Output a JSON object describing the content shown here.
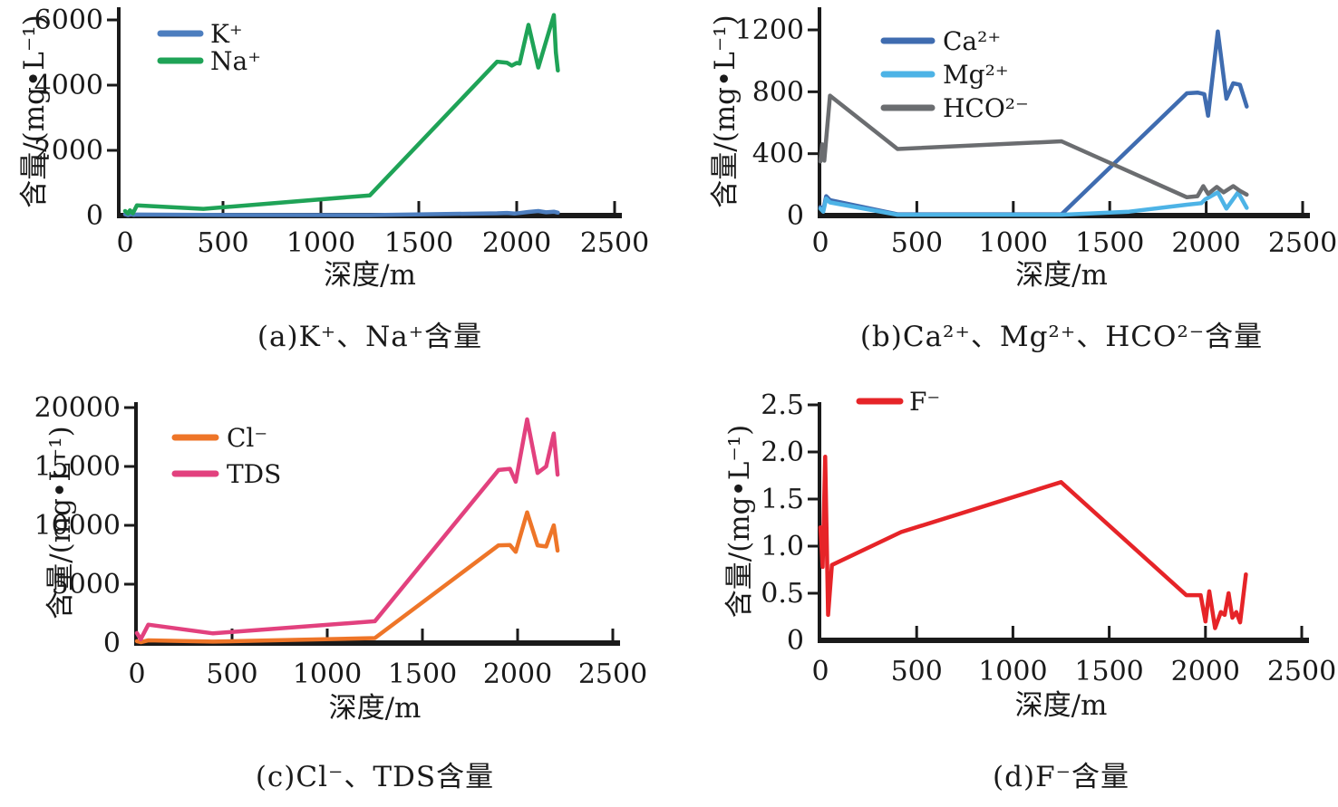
{
  "figure_title": "",
  "colors": {
    "axis": "#1a1a1a",
    "text": "#1a1a1a",
    "background": "#ffffff"
  },
  "chart_data": [
    {
      "id": "a",
      "type": "line",
      "caption": "(a)K⁺、Na⁺含量",
      "xlabel": "深度/m",
      "ylabel": "含量/(mg•L⁻¹)",
      "xlim": [
        0,
        2500
      ],
      "ylim": [
        0,
        6000
      ],
      "xticks": [
        0,
        500,
        1000,
        1500,
        2000,
        2500
      ],
      "xtick_labels": [
        "0",
        "500",
        "1000",
        "1500",
        "2000",
        "2500"
      ],
      "yticks": [
        0,
        2000,
        4000,
        6000
      ],
      "ytick_labels": [
        "0",
        "2000",
        "4000",
        "6000"
      ],
      "grid": false,
      "legend_position": "upper-left-inside",
      "series": [
        {
          "name": "K⁺",
          "color": "#4d7ebf",
          "points": [
            [
              0,
              40
            ],
            [
              15,
              15
            ],
            [
              30,
              35
            ],
            [
              45,
              20
            ],
            [
              60,
              30
            ],
            [
              400,
              20
            ],
            [
              1250,
              15
            ],
            [
              1900,
              70
            ],
            [
              1950,
              80
            ],
            [
              1990,
              60
            ],
            [
              2010,
              75
            ],
            [
              2060,
              110
            ],
            [
              2110,
              140
            ],
            [
              2150,
              100
            ],
            [
              2190,
              120
            ],
            [
              2210,
              90
            ]
          ]
        },
        {
          "name": "Na⁺",
          "color": "#1fa357",
          "points": [
            [
              0,
              140
            ],
            [
              15,
              60
            ],
            [
              25,
              160
            ],
            [
              40,
              70
            ],
            [
              60,
              310
            ],
            [
              400,
              205
            ],
            [
              1250,
              620
            ],
            [
              1900,
              4720
            ],
            [
              1950,
              4690
            ],
            [
              1975,
              4600
            ],
            [
              2000,
              4680
            ],
            [
              2015,
              4660
            ],
            [
              2060,
              5850
            ],
            [
              2110,
              4540
            ],
            [
              2190,
              6150
            ],
            [
              2200,
              5000
            ],
            [
              2210,
              4450
            ]
          ]
        }
      ]
    },
    {
      "id": "b",
      "type": "line",
      "caption": "(b)Ca²⁺、Mg²⁺、HCO²⁻含量",
      "xlabel": "深度/m",
      "ylabel": "含量/(mg•L⁻¹)",
      "xlim": [
        0,
        2500
      ],
      "ylim": [
        0,
        1200
      ],
      "xticks": [
        0,
        500,
        1000,
        1500,
        2000,
        2500
      ],
      "xtick_labels": [
        "0",
        "500",
        "1000",
        "1500",
        "2000",
        "2500"
      ],
      "yticks": [
        0,
        400,
        800,
        1200
      ],
      "ytick_labels": [
        "0",
        "400",
        "800",
        "1200"
      ],
      "grid": false,
      "legend_position": "upper-left-inside",
      "series": [
        {
          "name": "Ca²⁺",
          "color": "#3f6cb0",
          "points": [
            [
              0,
              55
            ],
            [
              15,
              35
            ],
            [
              30,
              125
            ],
            [
              50,
              100
            ],
            [
              400,
              8
            ],
            [
              1250,
              8
            ],
            [
              1900,
              790
            ],
            [
              1955,
              795
            ],
            [
              1990,
              785
            ],
            [
              2010,
              645
            ],
            [
              2060,
              1190
            ],
            [
              2105,
              755
            ],
            [
              2140,
              855
            ],
            [
              2175,
              845
            ],
            [
              2210,
              705
            ]
          ]
        },
        {
          "name": "Mg²⁺",
          "color": "#4db3e6",
          "points": [
            [
              0,
              45
            ],
            [
              15,
              25
            ],
            [
              30,
              110
            ],
            [
              50,
              85
            ],
            [
              400,
              5
            ],
            [
              1250,
              5
            ],
            [
              1600,
              25
            ],
            [
              1900,
              70
            ],
            [
              1975,
              80
            ],
            [
              1995,
              105
            ],
            [
              2060,
              150
            ],
            [
              2105,
              45
            ],
            [
              2165,
              150
            ],
            [
              2210,
              50
            ]
          ]
        },
        {
          "name": "HCO²⁻",
          "color": "#6b6d70",
          "points": [
            [
              0,
              350
            ],
            [
              10,
              460
            ],
            [
              20,
              355
            ],
            [
              50,
              775
            ],
            [
              400,
              430
            ],
            [
              1250,
              480
            ],
            [
              1900,
              118
            ],
            [
              1955,
              125
            ],
            [
              1985,
              190
            ],
            [
              2010,
              140
            ],
            [
              2055,
              185
            ],
            [
              2090,
              150
            ],
            [
              2140,
              190
            ],
            [
              2175,
              160
            ],
            [
              2210,
              135
            ]
          ]
        }
      ]
    },
    {
      "id": "c",
      "type": "line",
      "caption": "(c)Cl⁻、TDS含量",
      "xlabel": "深度/m",
      "ylabel": "含量/(mg•L⁻¹)",
      "xlim": [
        0,
        2500
      ],
      "ylim": [
        0,
        20000
      ],
      "xticks": [
        0,
        500,
        1000,
        1500,
        2000,
        2500
      ],
      "xtick_labels": [
        "0",
        "500",
        "1000",
        "1500",
        "2000",
        "2500"
      ],
      "yticks": [
        0,
        5000,
        10000,
        15000,
        20000
      ],
      "ytick_labels": [
        "0",
        "5000",
        "10000",
        "15000",
        "20000"
      ],
      "grid": false,
      "legend_position": "upper-left-inside",
      "series": [
        {
          "name": "Cl⁻",
          "color": "#ee7528",
          "points": [
            [
              0,
              160
            ],
            [
              20,
              80
            ],
            [
              60,
              230
            ],
            [
              400,
              120
            ],
            [
              1250,
              420
            ],
            [
              1900,
              8300
            ],
            [
              1960,
              8320
            ],
            [
              1990,
              7750
            ],
            [
              2050,
              11100
            ],
            [
              2105,
              8300
            ],
            [
              2150,
              8200
            ],
            [
              2190,
              10000
            ],
            [
              2210,
              7850
            ]
          ]
        },
        {
          "name": "TDS",
          "color": "#e2417e",
          "points": [
            [
              0,
              850
            ],
            [
              20,
              320
            ],
            [
              60,
              1560
            ],
            [
              400,
              820
            ],
            [
              1250,
              1850
            ],
            [
              1900,
              14700
            ],
            [
              1960,
              14800
            ],
            [
              1990,
              13700
            ],
            [
              2050,
              19000
            ],
            [
              2105,
              14450
            ],
            [
              2150,
              15000
            ],
            [
              2190,
              17800
            ],
            [
              2210,
              14300
            ]
          ]
        }
      ]
    },
    {
      "id": "d",
      "type": "line",
      "caption": "(d)F⁻含量",
      "xlabel": "深度/m",
      "ylabel": "含量/(mg•L⁻¹)",
      "xlim": [
        0,
        2500
      ],
      "ylim": [
        0,
        2.5
      ],
      "xticks": [
        0,
        500,
        1000,
        1500,
        2000,
        2500
      ],
      "xtick_labels": [
        "0",
        "500",
        "1000",
        "1500",
        "2000",
        "2500"
      ],
      "yticks": [
        0,
        0.5,
        1.0,
        1.5,
        2.0,
        2.5
      ],
      "ytick_labels": [
        "0",
        "0.5",
        "1.0",
        "1.5",
        "2.0",
        "2.5"
      ],
      "grid": false,
      "legend_position": "upper-left-inside",
      "series": [
        {
          "name": "F⁻",
          "color": "#e62428",
          "points": [
            [
              0,
              1.2
            ],
            [
              12,
              0.78
            ],
            [
              25,
              1.95
            ],
            [
              40,
              0.27
            ],
            [
              60,
              0.8
            ],
            [
              420,
              1.15
            ],
            [
              1250,
              1.68
            ],
            [
              1900,
              0.48
            ],
            [
              1975,
              0.48
            ],
            [
              2000,
              0.2
            ],
            [
              2020,
              0.52
            ],
            [
              2050,
              0.13
            ],
            [
              2080,
              0.3
            ],
            [
              2100,
              0.27
            ],
            [
              2120,
              0.5
            ],
            [
              2140,
              0.24
            ],
            [
              2160,
              0.3
            ],
            [
              2180,
              0.19
            ],
            [
              2210,
              0.7
            ]
          ]
        }
      ]
    }
  ]
}
